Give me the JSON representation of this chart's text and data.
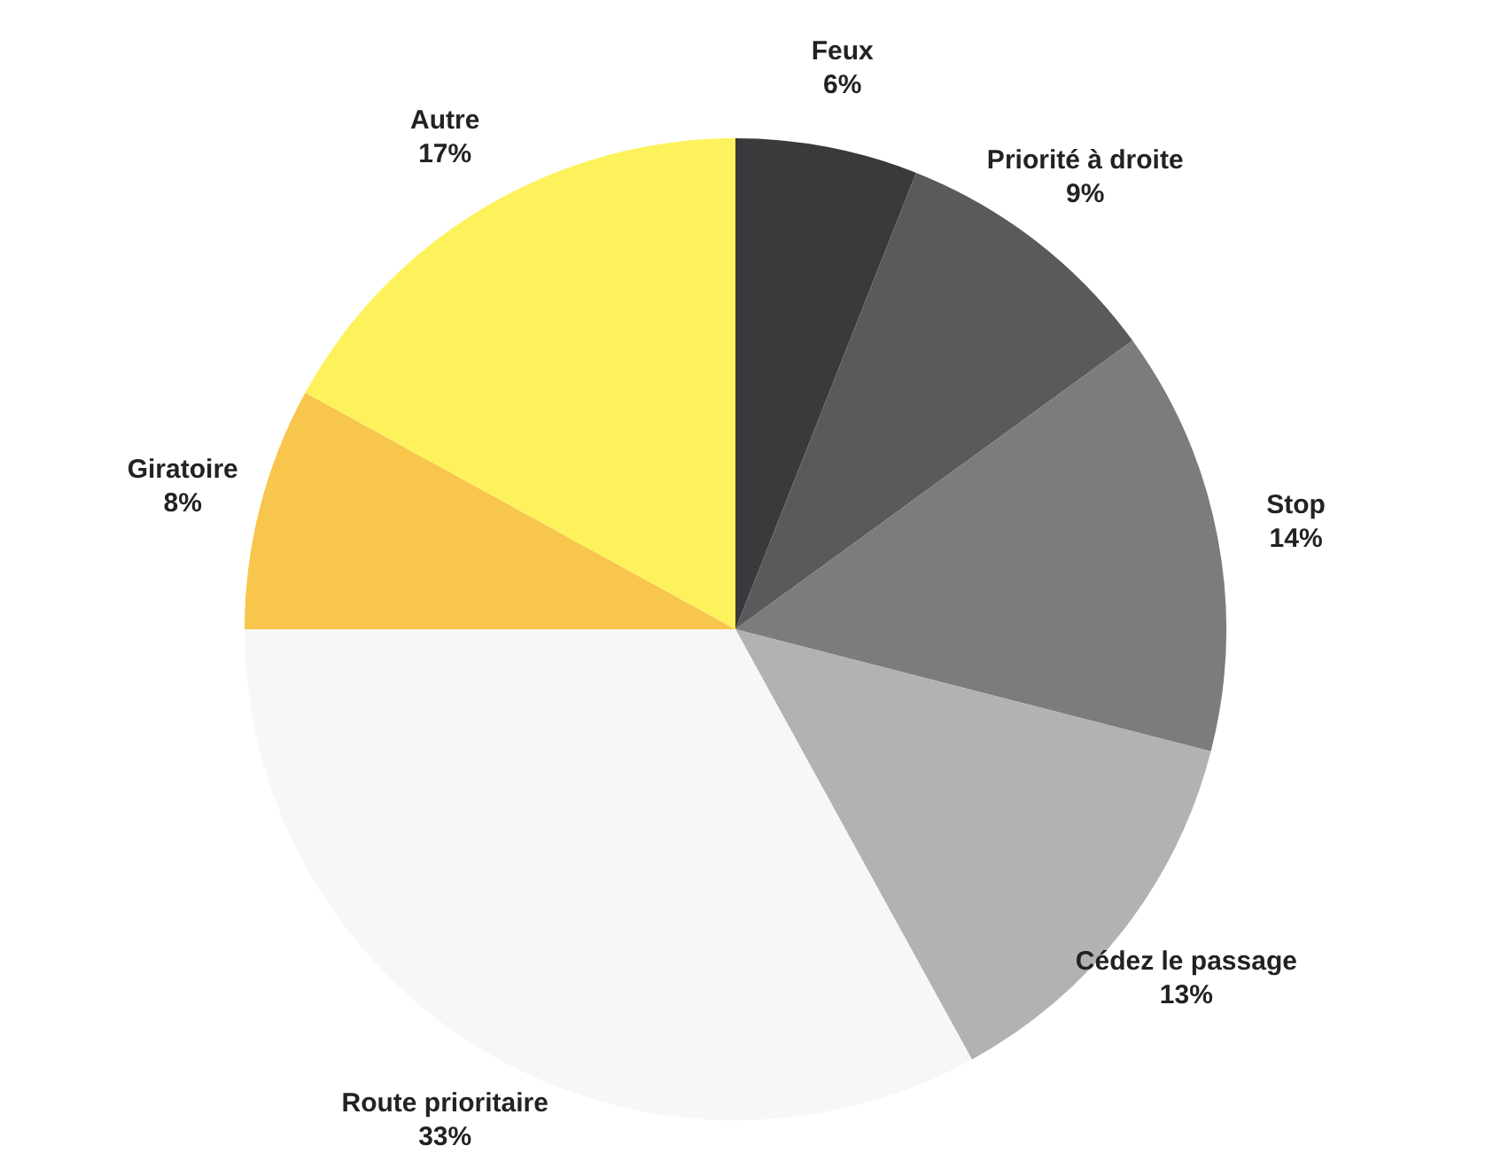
{
  "chart_data": {
    "type": "pie",
    "categories": [
      "Feux",
      "Priorité à droite",
      "Stop",
      "Cédez le passage",
      "Route prioritaire",
      "Giratoire",
      "Autre"
    ],
    "values": [
      6,
      9,
      14,
      13,
      33,
      8,
      17
    ],
    "value_labels": [
      "6%",
      "9%",
      "14%",
      "13%",
      "33%",
      "8%",
      "17%"
    ],
    "colors": [
      "#3a3a3c",
      "#5a5a5c",
      "#7c7c7c",
      "#b2b2b2",
      "#f7f7f7",
      "#f8c64c",
      "#fdf25c"
    ],
    "legend": false
  }
}
